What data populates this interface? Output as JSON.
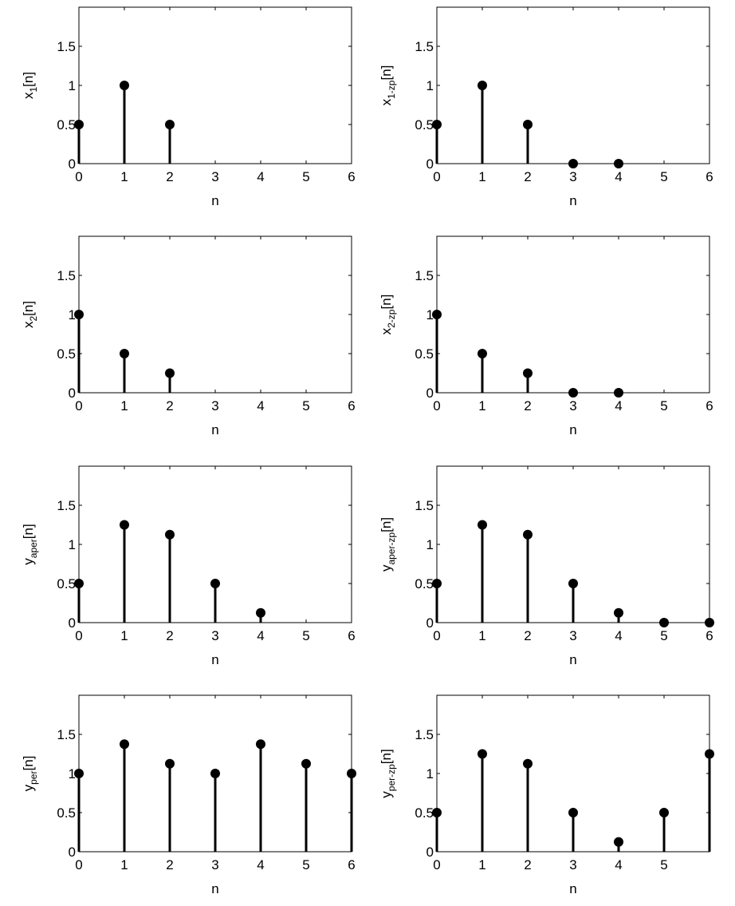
{
  "style": {
    "stem_color": "#000000",
    "marker_color": "#000000",
    "axes_color": "#000000",
    "background": "#ffffff"
  },
  "chart_data": [
    {
      "type": "stem",
      "ylabel": {
        "base": "x",
        "sub": "1",
        "suffix": "[n]"
      },
      "xlabel": "n",
      "xlim": [
        0,
        6
      ],
      "ylim": [
        0,
        2
      ],
      "xticks": [
        "0",
        "1",
        "2",
        "3",
        "4",
        "5",
        "6"
      ],
      "yticks": [
        "0",
        "0.5",
        "1",
        "1.5"
      ],
      "x": [
        0,
        1,
        2
      ],
      "values": [
        0.5,
        1,
        0.5
      ]
    },
    {
      "type": "stem",
      "ylabel": {
        "base": "x",
        "sub": "1-zp",
        "suffix": "[n]"
      },
      "xlabel": "n",
      "xlim": [
        0,
        6
      ],
      "ylim": [
        0,
        2
      ],
      "xticks": [
        "0",
        "1",
        "2",
        "3",
        "4",
        "5",
        "6"
      ],
      "yticks": [
        "0",
        "0.5",
        "1",
        "1.5"
      ],
      "x": [
        0,
        1,
        2,
        3,
        4
      ],
      "values": [
        0.5,
        1,
        0.5,
        0,
        0
      ]
    },
    {
      "type": "stem",
      "ylabel": {
        "base": "x",
        "sub": "2",
        "suffix": "[n]"
      },
      "xlabel": "n",
      "xlim": [
        0,
        6
      ],
      "ylim": [
        0,
        2
      ],
      "xticks": [
        "0",
        "1",
        "2",
        "3",
        "4",
        "5",
        "6"
      ],
      "yticks": [
        "0",
        "0.5",
        "1",
        "1.5"
      ],
      "x": [
        0,
        1,
        2
      ],
      "values": [
        1,
        0.5,
        0.25
      ]
    },
    {
      "type": "stem",
      "ylabel": {
        "base": "x",
        "sub": "2-zp",
        "suffix": "[n]"
      },
      "xlabel": "n",
      "xlim": [
        0,
        6
      ],
      "ylim": [
        0,
        2
      ],
      "xticks": [
        "0",
        "1",
        "2",
        "3",
        "4",
        "5",
        "6"
      ],
      "yticks": [
        "0",
        "0.5",
        "1",
        "1.5"
      ],
      "x": [
        0,
        1,
        2,
        3,
        4
      ],
      "values": [
        1,
        0.5,
        0.25,
        0,
        0
      ]
    },
    {
      "type": "stem",
      "ylabel": {
        "base": "y",
        "sub": "aper",
        "suffix": "[n]"
      },
      "xlabel": "n",
      "xlim": [
        0,
        6
      ],
      "ylim": [
        0,
        2
      ],
      "xticks": [
        "0",
        "1",
        "2",
        "3",
        "4",
        "5",
        "6"
      ],
      "yticks": [
        "0",
        "0.5",
        "1",
        "1.5"
      ],
      "x": [
        0,
        1,
        2,
        3,
        4
      ],
      "values": [
        0.5,
        1.25,
        1.125,
        0.5,
        0.125
      ]
    },
    {
      "type": "stem",
      "ylabel": {
        "base": "y",
        "sub": "aper-zp",
        "suffix": "[n]"
      },
      "xlabel": "n",
      "xlim": [
        0,
        6
      ],
      "ylim": [
        0,
        2
      ],
      "xticks": [
        "0",
        "1",
        "2",
        "3",
        "4",
        "5",
        "6"
      ],
      "yticks": [
        "0",
        "0.5",
        "1",
        "1.5"
      ],
      "x": [
        0,
        1,
        2,
        3,
        4,
        5,
        6
      ],
      "values": [
        0.5,
        1.25,
        1.125,
        0.5,
        0.125,
        0,
        0
      ]
    },
    {
      "type": "stem",
      "ylabel": {
        "base": "y",
        "sub": "per",
        "suffix": "[n]"
      },
      "xlabel": "n",
      "xlim": [
        0,
        6
      ],
      "ylim": [
        0,
        2
      ],
      "xticks": [
        "0",
        "1",
        "2",
        "3",
        "4",
        "5",
        "6"
      ],
      "yticks": [
        "0",
        "0.5",
        "1",
        "1.5"
      ],
      "x": [
        0,
        1,
        2,
        3,
        4,
        5,
        6
      ],
      "values": [
        1,
        1.375,
        1.125,
        1,
        1.375,
        1.125,
        1
      ]
    },
    {
      "type": "stem",
      "ylabel": {
        "base": "y",
        "sub": "per-zp",
        "suffix": "[n]"
      },
      "xlabel": "n",
      "xlim": [
        0,
        6
      ],
      "ylim": [
        0,
        2
      ],
      "xticks": [
        "0",
        "1",
        "2",
        "3",
        "4",
        "5"
      ],
      "yticks": [
        "0",
        "0.5",
        "1",
        "1.5"
      ],
      "x": [
        0,
        1,
        2,
        3,
        4,
        5,
        6
      ],
      "values": [
        0.5,
        1.25,
        1.125,
        0.5,
        0.125,
        0.5,
        1.25
      ]
    }
  ]
}
